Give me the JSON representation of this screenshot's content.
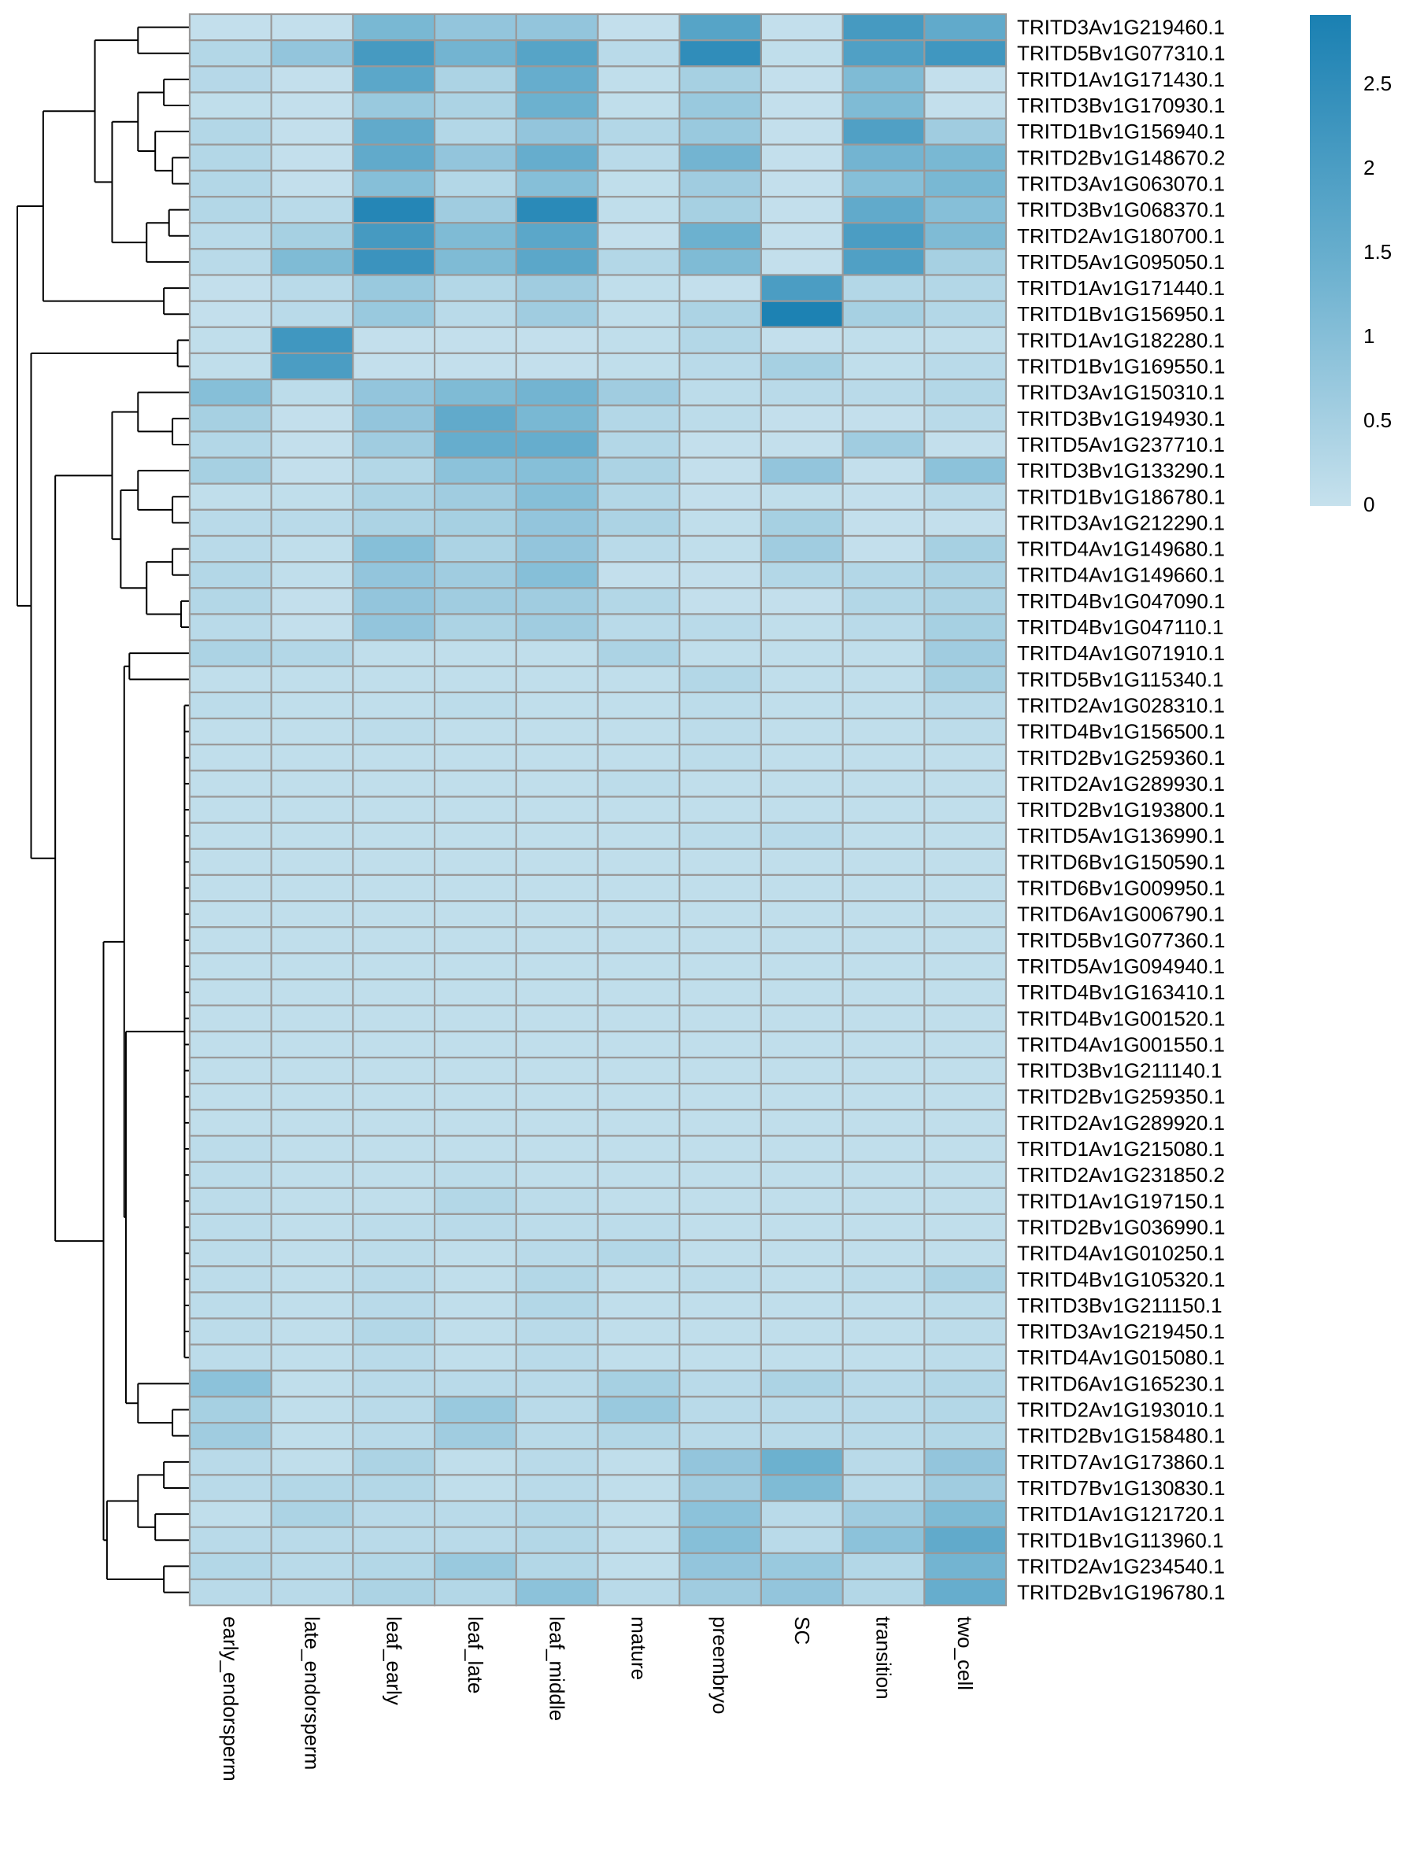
{
  "chart_data": {
    "type": "heatmap",
    "title": "",
    "columns": [
      "early_endorsperm",
      "late_endorsperm",
      "leaf_early",
      "leaf_late",
      "leaf_middle",
      "mature",
      "preembryo",
      "SC",
      "transition",
      "two_cell"
    ],
    "rows": [
      "TRITD3Av1G219460.1",
      "TRITD5Bv1G077310.1",
      "TRITD1Av1G171430.1",
      "TRITD3Bv1G170930.1",
      "TRITD1Bv1G156940.1",
      "TRITD2Bv1G148670.2",
      "TRITD3Av1G063070.1",
      "TRITD3Bv1G068370.1",
      "TRITD2Av1G180700.1",
      "TRITD5Av1G095050.1",
      "TRITD1Av1G171440.1",
      "TRITD1Bv1G156950.1",
      "TRITD1Av1G182280.1",
      "TRITD1Bv1G169550.1",
      "TRITD3Av1G150310.1",
      "TRITD3Bv1G194930.1",
      "TRITD5Av1G237710.1",
      "TRITD3Bv1G133290.1",
      "TRITD1Bv1G186780.1",
      "TRITD3Av1G212290.1",
      "TRITD4Av1G149680.1",
      "TRITD4Av1G149660.1",
      "TRITD4Bv1G047090.1",
      "TRITD4Bv1G047110.1",
      "TRITD4Av1G071910.1",
      "TRITD5Bv1G115340.1",
      "TRITD2Av1G028310.1",
      "TRITD4Bv1G156500.1",
      "TRITD2Bv1G259360.1",
      "TRITD2Av1G289930.1",
      "TRITD2Bv1G193800.1",
      "TRITD5Av1G136990.1",
      "TRITD6Bv1G150590.1",
      "TRITD6Bv1G009950.1",
      "TRITD6Av1G006790.1",
      "TRITD5Bv1G077360.1",
      "TRITD5Av1G094940.1",
      "TRITD4Bv1G163410.1",
      "TRITD4Bv1G001520.1",
      "TRITD4Av1G001550.1",
      "TRITD3Bv1G211140.1",
      "TRITD2Bv1G259350.1",
      "TRITD2Av1G289920.1",
      "TRITD1Av1G215080.1",
      "TRITD2Av1G231850.2",
      "TRITD1Av1G197150.1",
      "TRITD2Bv1G036990.1",
      "TRITD4Av1G010250.1",
      "TRITD4Bv1G105320.1",
      "TRITD3Bv1G211150.1",
      "TRITD3Av1G219450.1",
      "TRITD4Av1G015080.1",
      "TRITD6Av1G165230.1",
      "TRITD2Av1G193010.1",
      "TRITD2Bv1G158480.1",
      "TRITD7Av1G173860.1",
      "TRITD7Bv1G130830.1",
      "TRITD1Av1G121720.1",
      "TRITD1Bv1G113960.1",
      "TRITD2Av1G234540.1",
      "TRITD2Bv1G196780.1"
    ],
    "values": [
      [
        0.05,
        0.05,
        1.2,
        0.8,
        0.8,
        0.05,
        1.8,
        0.05,
        2.1,
        1.6
      ],
      [
        0.3,
        0.8,
        2.1,
        1.3,
        1.8,
        0.2,
        2.5,
        0.1,
        1.9,
        2.2
      ],
      [
        0.25,
        0.05,
        1.7,
        0.4,
        1.5,
        0.1,
        0.5,
        0.05,
        1.1,
        0.05
      ],
      [
        0.1,
        0.05,
        0.7,
        0.4,
        1.4,
        0.1,
        0.7,
        0.05,
        1.1,
        0.05
      ],
      [
        0.3,
        0.05,
        1.6,
        0.3,
        0.8,
        0.3,
        0.7,
        0.05,
        1.9,
        0.6
      ],
      [
        0.3,
        0.05,
        1.6,
        0.8,
        1.5,
        0.2,
        1.3,
        0.05,
        1.3,
        1.2
      ],
      [
        0.3,
        0.05,
        1.0,
        0.3,
        1.0,
        0.1,
        0.6,
        0.05,
        1.0,
        1.2
      ],
      [
        0.3,
        0.2,
        2.7,
        0.6,
        2.6,
        0.1,
        0.5,
        0.05,
        1.6,
        1.0
      ],
      [
        0.2,
        0.5,
        2.1,
        1.1,
        1.7,
        0.05,
        1.4,
        0.05,
        2.0,
        1.1
      ],
      [
        0.2,
        1.1,
        2.3,
        1.1,
        1.7,
        0.3,
        1.1,
        0.05,
        1.9,
        0.5
      ],
      [
        0.05,
        0.2,
        0.7,
        0.3,
        0.6,
        0.1,
        0.05,
        2.0,
        0.3,
        0.3
      ],
      [
        0.05,
        0.2,
        0.7,
        0.2,
        0.6,
        0.1,
        0.4,
        2.85,
        0.5,
        0.3
      ],
      [
        0.1,
        2.2,
        0.05,
        0.05,
        0.05,
        0.1,
        0.3,
        0.05,
        0.1,
        0.1
      ],
      [
        0.1,
        2.0,
        0.05,
        0.05,
        0.05,
        0.1,
        0.2,
        0.5,
        0.1,
        0.2
      ],
      [
        1.0,
        0.15,
        0.8,
        1.1,
        1.3,
        0.6,
        0.15,
        0.2,
        0.2,
        0.3
      ],
      [
        0.5,
        0.05,
        0.8,
        1.6,
        1.2,
        0.3,
        0.15,
        0.05,
        0.05,
        0.2
      ],
      [
        0.3,
        0.05,
        0.6,
        1.5,
        1.5,
        0.3,
        0.05,
        0.05,
        0.6,
        0.05
      ],
      [
        0.5,
        0.05,
        0.3,
        0.9,
        1.0,
        0.4,
        0.05,
        0.8,
        0.05,
        0.9
      ],
      [
        0.1,
        0.1,
        0.4,
        0.6,
        1.0,
        0.3,
        0.05,
        0.1,
        0.05,
        0.2
      ],
      [
        0.2,
        0.2,
        0.4,
        0.5,
        0.8,
        0.4,
        0.1,
        0.5,
        0.05,
        0.05
      ],
      [
        0.2,
        0.1,
        1.0,
        0.4,
        0.8,
        0.2,
        0.1,
        0.6,
        0.05,
        0.5
      ],
      [
        0.3,
        0.1,
        0.8,
        0.6,
        1.0,
        0.05,
        0.05,
        0.3,
        0.3,
        0.4
      ],
      [
        0.3,
        0.05,
        0.8,
        0.6,
        0.6,
        0.3,
        0.05,
        0.05,
        0.3,
        0.4
      ],
      [
        0.2,
        0.05,
        0.8,
        0.4,
        0.6,
        0.2,
        0.2,
        0.1,
        0.2,
        0.5
      ],
      [
        0.4,
        0.3,
        0.1,
        0.1,
        0.1,
        0.4,
        0.1,
        0.1,
        0.1,
        0.6
      ],
      [
        0.1,
        0.1,
        0.1,
        0.1,
        0.1,
        0.1,
        0.3,
        0.1,
        0.1,
        0.5
      ],
      [
        0.15,
        0.1,
        0.1,
        0.15,
        0.1,
        0.1,
        0.15,
        0.1,
        0.1,
        0.2
      ],
      [
        0.1,
        0.1,
        0.15,
        0.1,
        0.1,
        0.1,
        0.15,
        0.1,
        0.1,
        0.15
      ],
      [
        0.1,
        0.1,
        0.1,
        0.1,
        0.1,
        0.1,
        0.15,
        0.1,
        0.1,
        0.1
      ],
      [
        0.1,
        0.1,
        0.1,
        0.1,
        0.1,
        0.15,
        0.1,
        0.1,
        0.1,
        0.1
      ],
      [
        0.1,
        0.1,
        0.1,
        0.1,
        0.1,
        0.1,
        0.1,
        0.1,
        0.1,
        0.1
      ],
      [
        0.1,
        0.1,
        0.1,
        0.1,
        0.1,
        0.1,
        0.15,
        0.2,
        0.1,
        0.1
      ],
      [
        0.1,
        0.1,
        0.1,
        0.1,
        0.1,
        0.1,
        0.1,
        0.1,
        0.1,
        0.1
      ],
      [
        0.1,
        0.1,
        0.1,
        0.1,
        0.1,
        0.1,
        0.1,
        0.1,
        0.1,
        0.1
      ],
      [
        0.1,
        0.1,
        0.1,
        0.1,
        0.1,
        0.1,
        0.1,
        0.1,
        0.1,
        0.1
      ],
      [
        0.1,
        0.1,
        0.1,
        0.1,
        0.1,
        0.1,
        0.1,
        0.1,
        0.1,
        0.1
      ],
      [
        0.1,
        0.1,
        0.1,
        0.1,
        0.1,
        0.1,
        0.1,
        0.1,
        0.1,
        0.1
      ],
      [
        0.1,
        0.1,
        0.1,
        0.1,
        0.1,
        0.1,
        0.1,
        0.1,
        0.1,
        0.1
      ],
      [
        0.1,
        0.1,
        0.1,
        0.1,
        0.1,
        0.1,
        0.1,
        0.1,
        0.1,
        0.1
      ],
      [
        0.1,
        0.1,
        0.1,
        0.1,
        0.1,
        0.1,
        0.1,
        0.1,
        0.1,
        0.1
      ],
      [
        0.1,
        0.1,
        0.1,
        0.1,
        0.1,
        0.1,
        0.1,
        0.1,
        0.1,
        0.1
      ],
      [
        0.1,
        0.1,
        0.1,
        0.1,
        0.1,
        0.1,
        0.1,
        0.1,
        0.1,
        0.1
      ],
      [
        0.1,
        0.1,
        0.1,
        0.1,
        0.1,
        0.1,
        0.1,
        0.1,
        0.1,
        0.1
      ],
      [
        0.15,
        0.1,
        0.1,
        0.1,
        0.1,
        0.1,
        0.1,
        0.1,
        0.1,
        0.1
      ],
      [
        0.15,
        0.1,
        0.1,
        0.15,
        0.1,
        0.1,
        0.1,
        0.1,
        0.1,
        0.1
      ],
      [
        0.15,
        0.1,
        0.1,
        0.3,
        0.15,
        0.1,
        0.1,
        0.1,
        0.1,
        0.1
      ],
      [
        0.15,
        0.1,
        0.15,
        0.2,
        0.15,
        0.15,
        0.1,
        0.1,
        0.1,
        0.1
      ],
      [
        0.15,
        0.1,
        0.15,
        0.1,
        0.2,
        0.3,
        0.1,
        0.1,
        0.1,
        0.1
      ],
      [
        0.15,
        0.1,
        0.2,
        0.1,
        0.3,
        0.1,
        0.15,
        0.1,
        0.15,
        0.4
      ],
      [
        0.15,
        0.1,
        0.2,
        0.1,
        0.3,
        0.1,
        0.1,
        0.1,
        0.1,
        0.15
      ],
      [
        0.15,
        0.1,
        0.3,
        0.1,
        0.2,
        0.1,
        0.1,
        0.1,
        0.1,
        0.15
      ],
      [
        0.15,
        0.1,
        0.2,
        0.1,
        0.2,
        0.1,
        0.1,
        0.1,
        0.1,
        0.15
      ],
      [
        0.9,
        0.1,
        0.2,
        0.2,
        0.2,
        0.5,
        0.2,
        0.4,
        0.2,
        0.3
      ],
      [
        0.5,
        0.1,
        0.2,
        0.7,
        0.2,
        0.7,
        0.2,
        0.2,
        0.2,
        0.3
      ],
      [
        0.6,
        0.1,
        0.2,
        0.6,
        0.2,
        0.3,
        0.2,
        0.2,
        0.2,
        0.3
      ],
      [
        0.2,
        0.1,
        0.4,
        0.1,
        0.2,
        0.1,
        0.8,
        1.4,
        0.2,
        0.8
      ],
      [
        0.2,
        0.3,
        0.3,
        0.1,
        0.2,
        0.1,
        0.6,
        1.1,
        0.2,
        0.6
      ],
      [
        0.1,
        0.4,
        0.2,
        0.2,
        0.3,
        0.1,
        0.9,
        0.2,
        0.6,
        1.1
      ],
      [
        0.2,
        0.2,
        0.2,
        0.2,
        0.3,
        0.1,
        1.0,
        0.2,
        0.9,
        1.6
      ],
      [
        0.3,
        0.2,
        0.3,
        0.7,
        0.3,
        0.1,
        0.8,
        0.7,
        0.3,
        1.3
      ],
      [
        0.2,
        0.2,
        0.4,
        0.3,
        0.9,
        0.2,
        0.6,
        0.8,
        0.3,
        1.5
      ]
    ],
    "color_scale": {
      "min": 0,
      "max": 2.9,
      "low_color": "#c6e1ed",
      "mid_color": "#69afce",
      "high_color": "#1a80b2",
      "ticks": [
        "0",
        "0.5",
        "1",
        "1.5",
        "2",
        "2.5"
      ]
    },
    "legend_position": "top-right",
    "row_dendrogram": true,
    "cell_border_color": "#999999"
  }
}
